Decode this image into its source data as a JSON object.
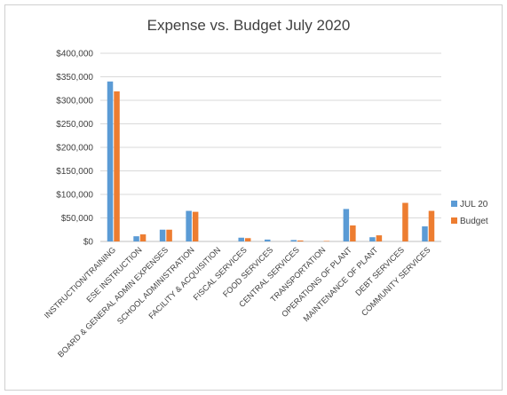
{
  "colors": {
    "series_1": "#5b9bd5",
    "series_2": "#ed7d31",
    "gridline": "#d9d9d9",
    "axis": "#bfbfbf",
    "text": "#404040"
  },
  "chart_data": {
    "type": "bar",
    "title": "Expense vs. Budget July 2020",
    "xlabel": "",
    "ylabel": "",
    "ylim": [
      0,
      400000
    ],
    "y_ticks": [
      0,
      50000,
      100000,
      150000,
      200000,
      250000,
      300000,
      350000,
      400000
    ],
    "y_tick_labels": [
      "$0",
      "$50,000",
      "$100,000",
      "$150,000",
      "$200,000",
      "$250,000",
      "$300,000",
      "$350,000",
      "$400,000"
    ],
    "grid": true,
    "legend_position": "right",
    "categories": [
      "INSTRUCTION/TRAINING",
      "ESE INSTRUCTION",
      "BOARD & GENERAL ADMIN EXPENSES",
      "SCHOOL ADMINISTRATION",
      "FACILITY & ACQUISITION",
      "FISCAL SERVICES",
      "FOOD SERVICES",
      "CENTRAL SERVICES",
      "TRANSPORTATION",
      "OPERATIONS OF PLANT",
      "MAINTENANCE OF PLANT",
      "DEBT SERVICES",
      "COMMUNITY SERVICES"
    ],
    "series": [
      {
        "name": "JUL 20",
        "values": [
          340000,
          11000,
          25000,
          65000,
          0,
          8000,
          4000,
          3000,
          0,
          69000,
          9000,
          0,
          32000
        ]
      },
      {
        "name": "Budget",
        "values": [
          319000,
          15000,
          25000,
          63000,
          0,
          7000,
          0,
          2000,
          1000,
          34000,
          13000,
          82000,
          65000
        ]
      }
    ]
  }
}
